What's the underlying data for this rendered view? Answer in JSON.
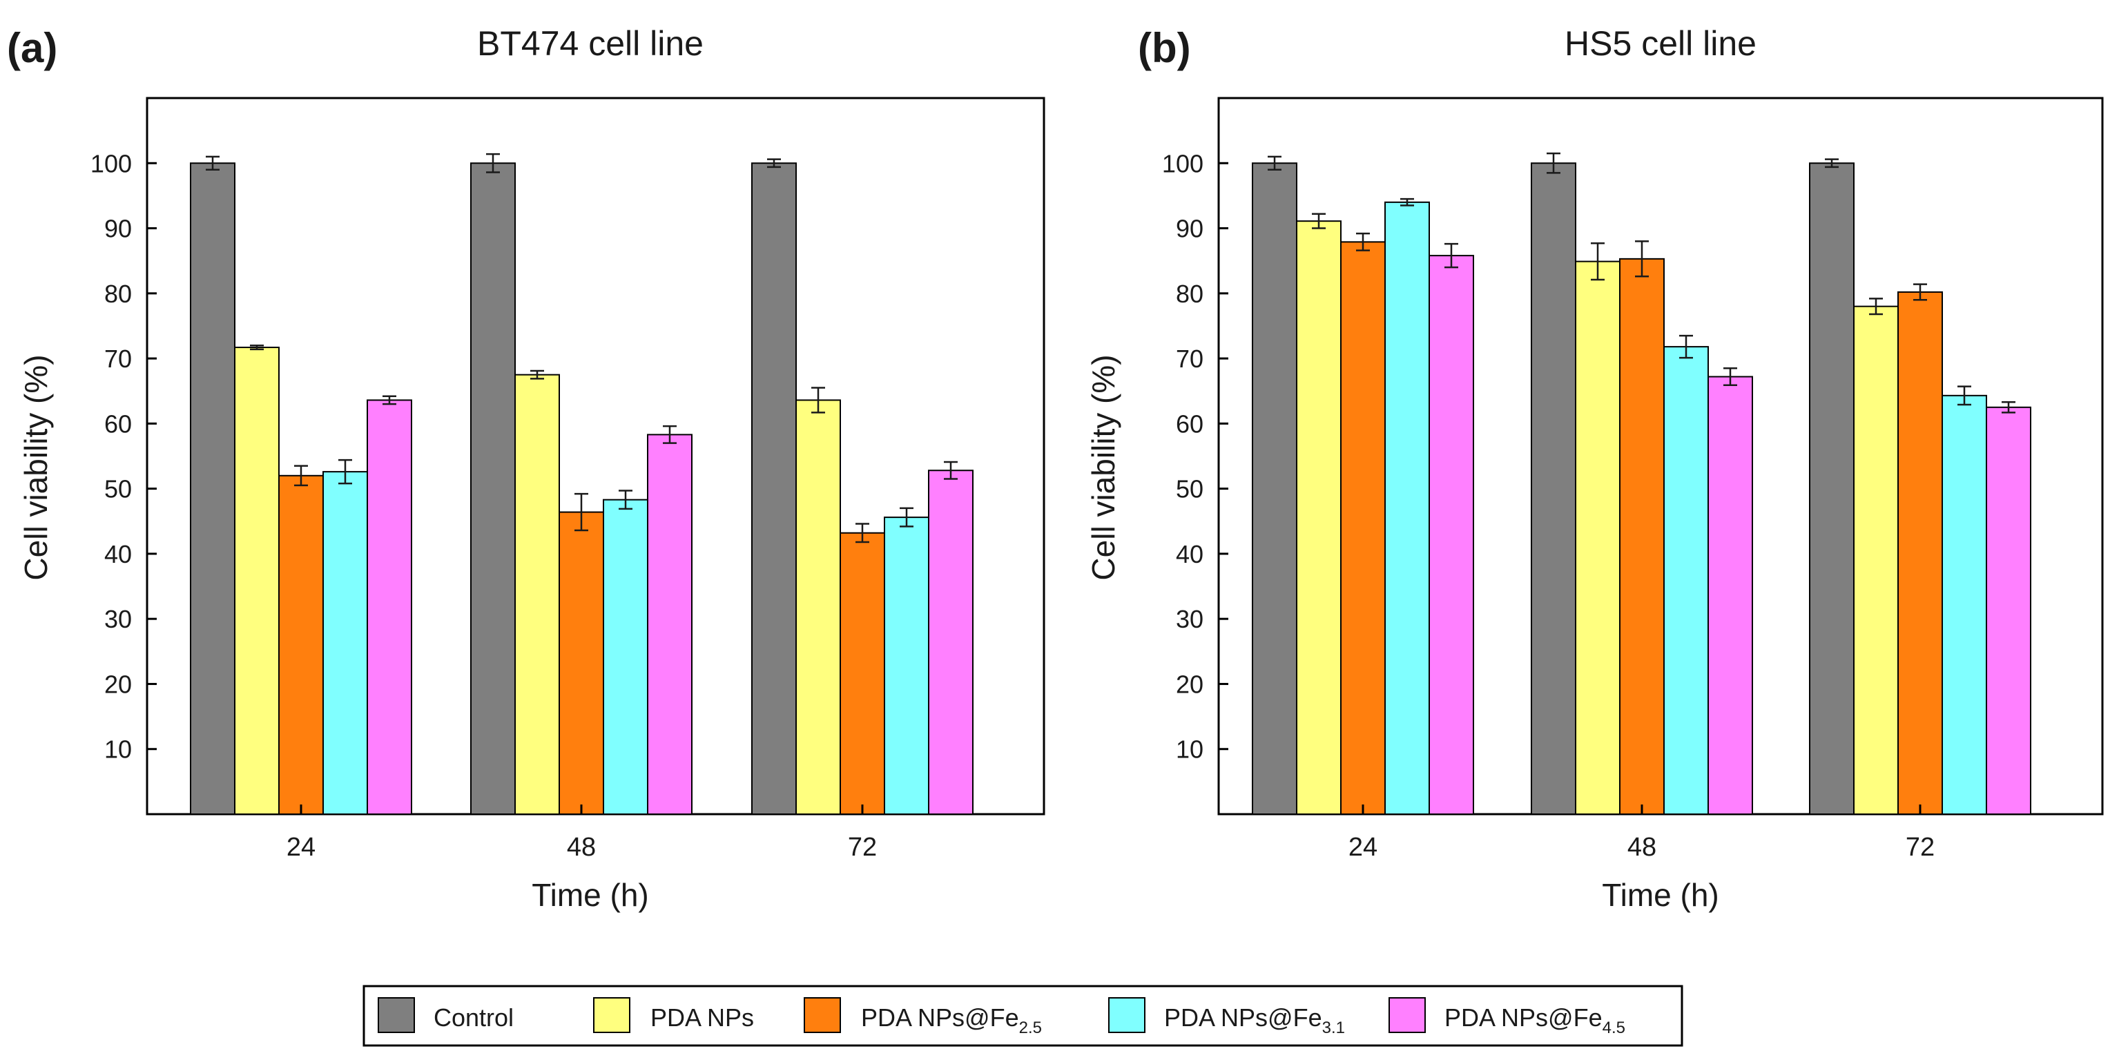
{
  "chart_data": [
    {
      "panel_label": "(a)",
      "type": "bar",
      "title": "BT474 cell line",
      "xlabel": "Time (h)",
      "ylabel": "Cell viability (%)",
      "categories": [
        "24",
        "48",
        "72"
      ],
      "ylim": [
        0,
        110
      ],
      "yticks": [
        10,
        20,
        30,
        40,
        50,
        60,
        70,
        80,
        90,
        100
      ],
      "series": [
        {
          "name": "Control",
          "values": [
            100,
            100,
            100
          ],
          "errors": [
            1.0,
            1.4,
            0.6
          ]
        },
        {
          "name": "PDA NPs",
          "values": [
            71.7,
            67.5,
            63.6
          ],
          "errors": [
            0.3,
            0.6,
            1.9
          ]
        },
        {
          "name": "PDA NPs@Fe2.5",
          "values": [
            52.0,
            46.4,
            43.2
          ],
          "errors": [
            1.5,
            2.8,
            1.4
          ]
        },
        {
          "name": "PDA NPs@Fe3.1",
          "values": [
            52.6,
            48.3,
            45.6
          ],
          "errors": [
            1.8,
            1.4,
            1.4
          ]
        },
        {
          "name": "PDA NPs@Fe4.5",
          "values": [
            63.6,
            58.3,
            52.8
          ],
          "errors": [
            0.6,
            1.3,
            1.3
          ]
        }
      ]
    },
    {
      "panel_label": "(b)",
      "type": "bar",
      "title": "HS5 cell line",
      "xlabel": "Time (h)",
      "ylabel": "Cell viability (%)",
      "categories": [
        "24",
        "48",
        "72"
      ],
      "ylim": [
        0,
        110
      ],
      "yticks": [
        10,
        20,
        30,
        40,
        50,
        60,
        70,
        80,
        90,
        100
      ],
      "series": [
        {
          "name": "Control",
          "values": [
            100,
            100,
            100
          ],
          "errors": [
            1.0,
            1.5,
            0.6
          ]
        },
        {
          "name": "PDA NPs",
          "values": [
            91.1,
            84.9,
            78.0
          ],
          "errors": [
            1.1,
            2.8,
            1.2
          ]
        },
        {
          "name": "PDA NPs@Fe2.5",
          "values": [
            87.9,
            85.3,
            80.2
          ],
          "errors": [
            1.3,
            2.7,
            1.2
          ]
        },
        {
          "name": "PDA NPs@Fe3.1",
          "values": [
            94.0,
            71.8,
            64.3
          ],
          "errors": [
            0.5,
            1.7,
            1.4
          ]
        },
        {
          "name": "PDA NPs@Fe4.5",
          "values": [
            85.8,
            67.2,
            62.5
          ],
          "errors": [
            1.8,
            1.3,
            0.8
          ]
        }
      ]
    }
  ],
  "legend": {
    "position": "bottom-center",
    "items": [
      {
        "color": "#7f7f7f",
        "main": "Control",
        "sub": ""
      },
      {
        "color": "#ffff7f",
        "main": "PDA NPs",
        "sub": ""
      },
      {
        "color": "#ff7f0e",
        "main": "PDA NPs@Fe",
        "sub": "2.5"
      },
      {
        "color": "#80ffff",
        "main": "PDA NPs@Fe",
        "sub": "3.1"
      },
      {
        "color": "#ff80ff",
        "main": "PDA NPs@Fe",
        "sub": "4.5"
      }
    ]
  },
  "colors": {
    "Control": "#7f7f7f",
    "PDA NPs": "#ffff7f",
    "PDA NPs@Fe2.5": "#ff7f0e",
    "PDA NPs@Fe3.1": "#80ffff",
    "PDA NPs@Fe4.5": "#ff80ff"
  }
}
